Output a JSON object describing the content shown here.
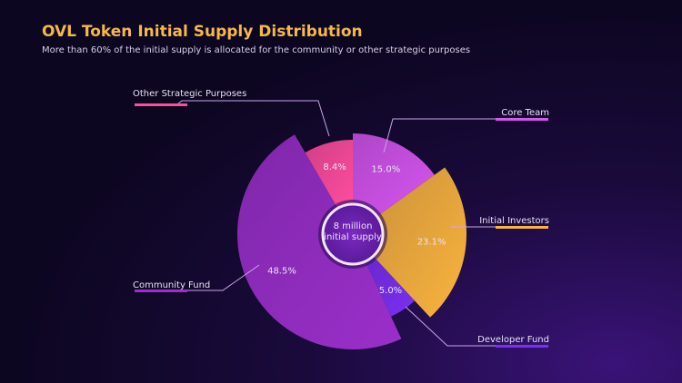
{
  "chart_data": {
    "type": "pie",
    "title": "OVL Token Initial Supply Distribution",
    "subtitle": "More than 60% of the initial supply is allocated for the community or other strategic purposes",
    "center_label": [
      "8 million",
      "initial supply"
    ],
    "categories": [
      "Core Team",
      "Initial Investors",
      "Developer Fund",
      "Community Fund",
      "Other Strategic Purposes"
    ],
    "values": [
      15.0,
      23.1,
      5.0,
      48.5,
      8.4
    ],
    "value_labels": [
      "15.0%",
      "23.1%",
      "5.0%",
      "48.5%",
      "8.4%"
    ],
    "colors": [
      "#d655ee",
      "#f9b43c",
      "#7b2ff0",
      "#9a2fc9",
      "#ff4d9d"
    ],
    "legend": "callouts"
  },
  "colors": {
    "title": "#f5b84a"
  }
}
